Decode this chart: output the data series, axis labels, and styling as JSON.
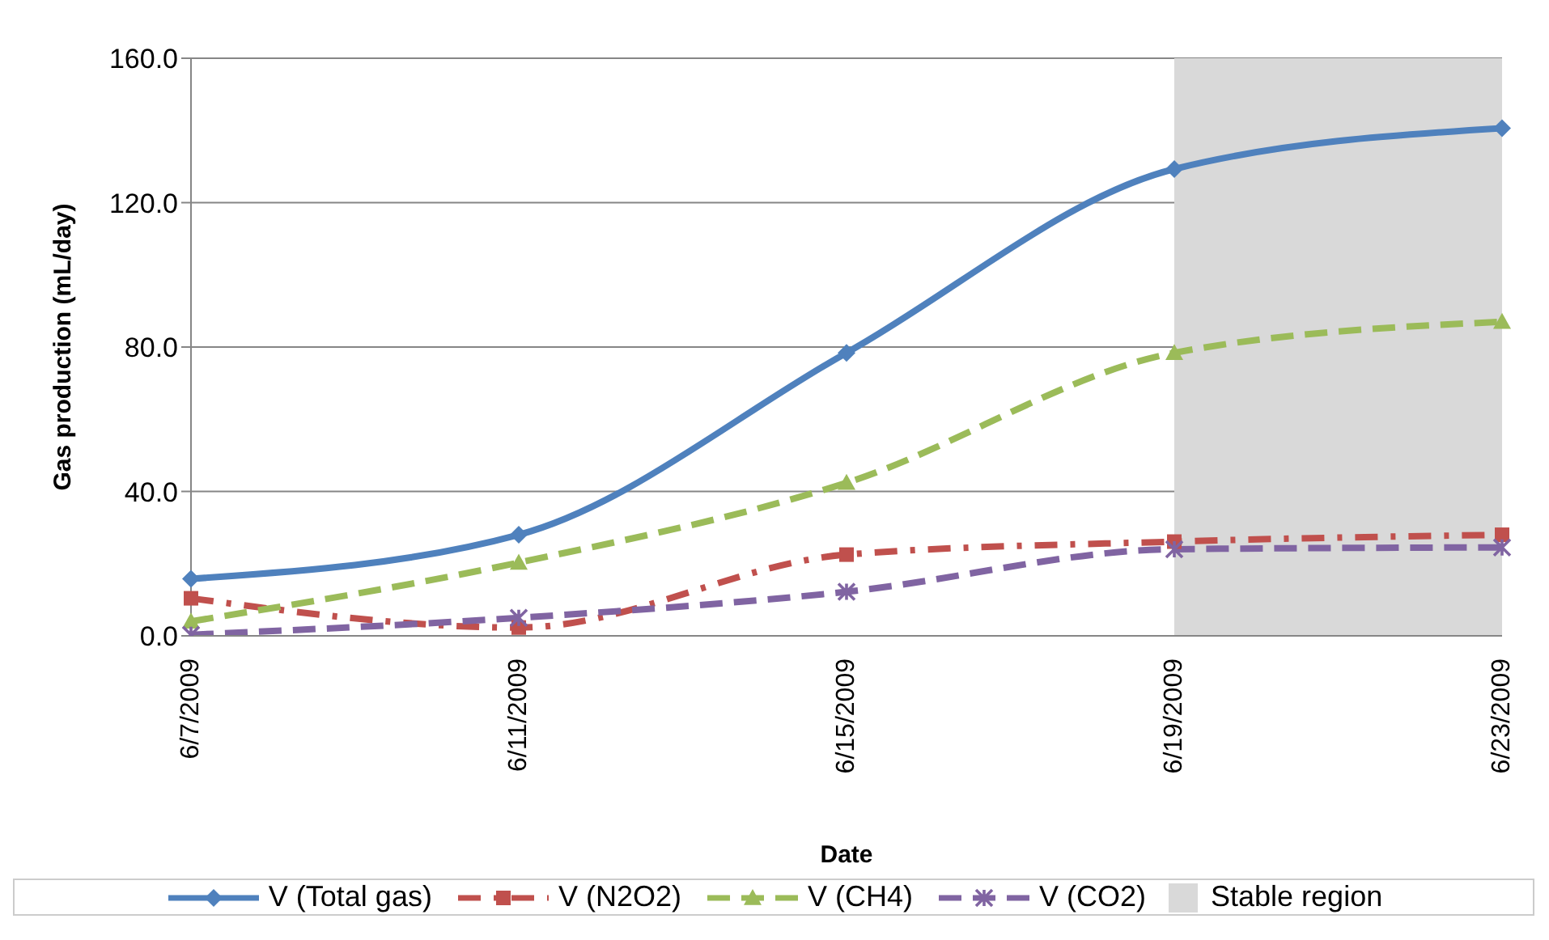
{
  "chart_data": {
    "type": "line",
    "xlabel": "Date",
    "ylabel": "Gas production (mL/day)",
    "categories": [
      "6/7/2009",
      "6/11/2009",
      "6/15/2009",
      "6/19/2009",
      "6/23/2009"
    ],
    "ylim": [
      0,
      160
    ],
    "yticks": [
      {
        "value": 0,
        "label": "0.0"
      },
      {
        "value": 40,
        "label": "40.0"
      },
      {
        "value": 80,
        "label": "80.0"
      },
      {
        "value": 120,
        "label": "120.0"
      },
      {
        "value": 160,
        "label": "160.0"
      }
    ],
    "grid": "y",
    "legend": "bottom",
    "series": [
      {
        "name": "V (Total gas)",
        "color": "#4f81bd",
        "values": [
          15.8,
          28,
          78.4,
          129.3,
          140.6
        ],
        "marker": "diamond",
        "line_style": "solid"
      },
      {
        "name": "V (N2O2)",
        "color": "#c0504d",
        "values": [
          10.4,
          2.3,
          22.5,
          26.1,
          28
        ],
        "marker": "square",
        "line_style": "dashdot"
      },
      {
        "name": "V (CH4)",
        "color": "#9bbb59",
        "values": [
          4,
          20.3,
          42.4,
          78.4,
          87
        ],
        "marker": "triangle",
        "line_style": "dashed"
      },
      {
        "name": "V (CO2)",
        "color": "#8064a2",
        "values": [
          0.3,
          5,
          12.2,
          24,
          24.5
        ],
        "marker": "cross",
        "line_style": "dashed"
      }
    ],
    "bands": [
      {
        "axis": "x",
        "from": "6/19/2009",
        "to": "6/23/2009",
        "label": "Stable region",
        "color": "#d9d9d9"
      }
    ]
  }
}
